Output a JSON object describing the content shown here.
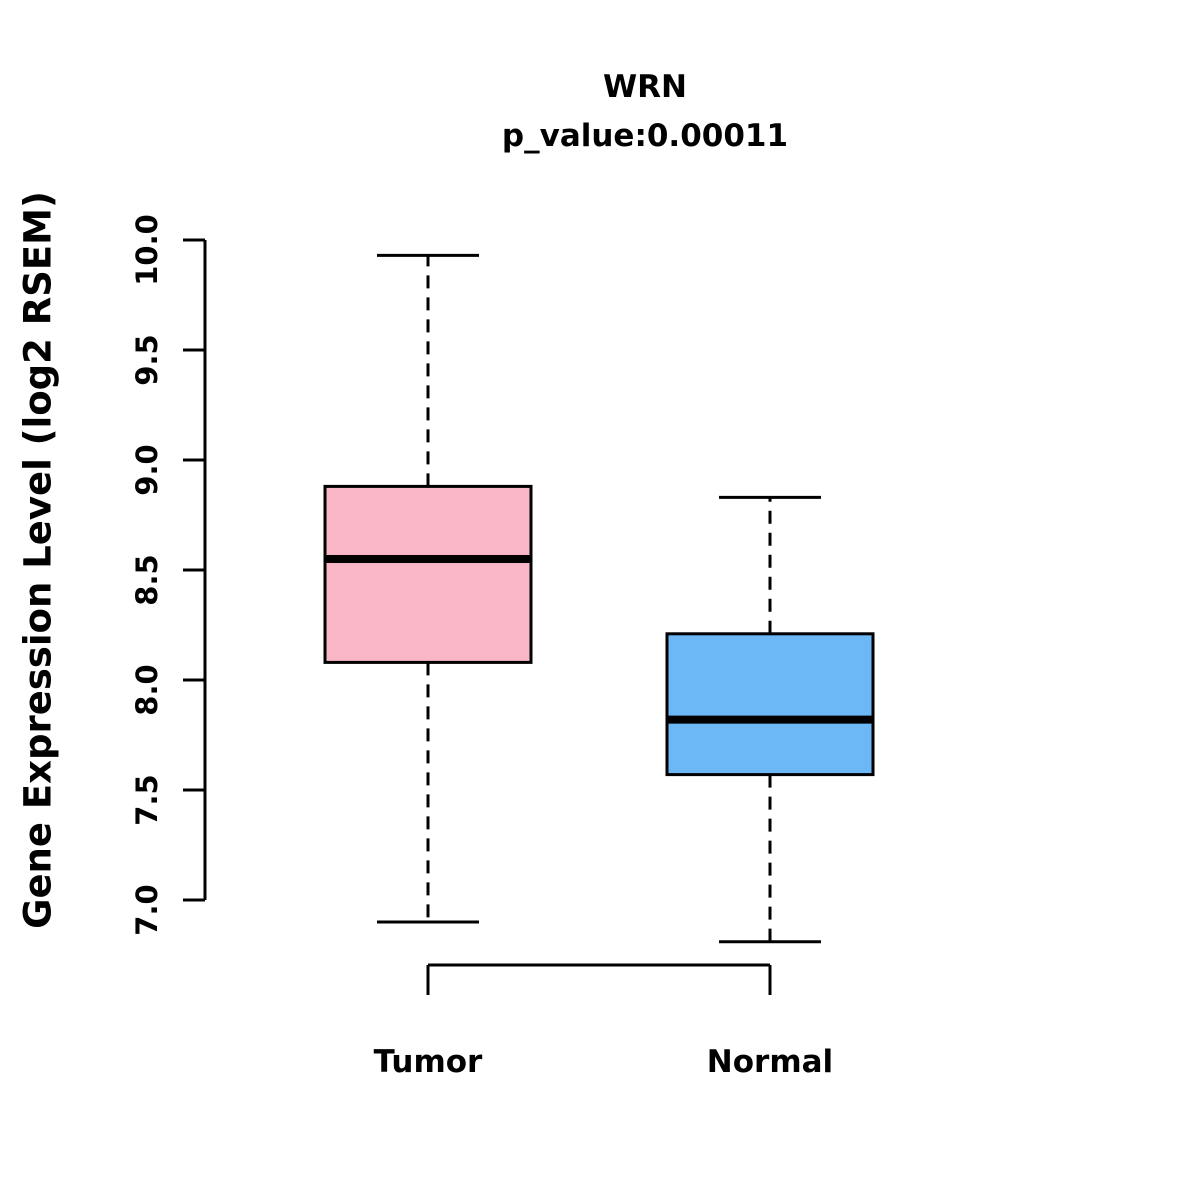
{
  "title": "WRN",
  "subtitle": "p_value:0.00011",
  "chart_data": {
    "type": "box",
    "title": "WRN",
    "subtitle": "p_value:0.00011",
    "xlabel": "",
    "ylabel": "Gene Expression Level (log2 RSEM)",
    "ylim": [
      6.7,
      10.1
    ],
    "yticks": [
      7.0,
      7.5,
      8.0,
      8.5,
      9.0,
      9.5,
      10.0
    ],
    "grid": false,
    "legend": "none",
    "categories": [
      "Tumor",
      "Normal"
    ],
    "series": [
      {
        "name": "Tumor",
        "min": 6.9,
        "q1": 8.08,
        "median": 8.55,
        "q3": 8.88,
        "max": 9.93,
        "color": "#F9B6C6"
      },
      {
        "name": "Normal",
        "min": 6.81,
        "q1": 7.57,
        "median": 7.82,
        "q3": 8.21,
        "max": 8.83,
        "color": "#6CB7F5"
      }
    ]
  },
  "colors": {
    "tumor_fill": "#F9B6C6",
    "normal_fill": "#6CB7F5",
    "stroke": "#000000",
    "background": "#FFFFFF"
  }
}
